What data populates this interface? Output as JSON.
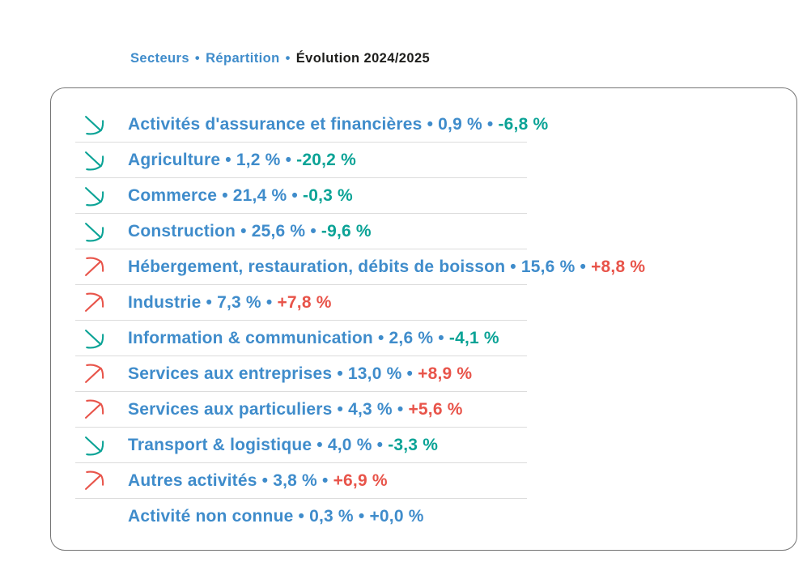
{
  "colors": {
    "blue": "#3f8ccb",
    "teal_negative": "#0ba396",
    "red_positive": "#e8544a",
    "dark": "#1d1d1b",
    "card_border": "#757575",
    "row_separator": "#dcdcdc"
  },
  "header": {
    "separator": "•",
    "items": [
      {
        "id": "secteurs",
        "label": "Secteurs",
        "style": "link"
      },
      {
        "id": "repartition",
        "label": "Répartition",
        "style": "link"
      },
      {
        "id": "evolution",
        "label": "Évolution 2024/2025",
        "style": "active"
      }
    ]
  },
  "list": {
    "separator": "•",
    "icons": {
      "up": "trend-up-arrow",
      "down": "trend-down-arrow",
      "flat": "none"
    },
    "rows": [
      {
        "sector": "Activités d'assurance et financières",
        "share": "0,9 %",
        "evolution": "-6,8 %",
        "trend": "down"
      },
      {
        "sector": "Agriculture",
        "share": "1,2 %",
        "evolution": "-20,2 %",
        "trend": "down"
      },
      {
        "sector": "Commerce",
        "share": "21,4 %",
        "evolution": "-0,3 %",
        "trend": "down"
      },
      {
        "sector": "Construction",
        "share": "25,6 %",
        "evolution": "-9,6 %",
        "trend": "down"
      },
      {
        "sector": "Hébergement, restauration, débits de boisson",
        "share": "15,6 %",
        "evolution": "+8,8 %",
        "trend": "up"
      },
      {
        "sector": "Industrie",
        "share": "7,3 %",
        "evolution": "+7,8 %",
        "trend": "up"
      },
      {
        "sector": "Information & communication",
        "share": "2,6 %",
        "evolution": "-4,1 %",
        "trend": "down"
      },
      {
        "sector": "Services aux entreprises",
        "share": "13,0 %",
        "evolution": "+8,9 %",
        "trend": "up"
      },
      {
        "sector": "Services aux particuliers",
        "share": "4,3 %",
        "evolution": "+5,6 %",
        "trend": "up"
      },
      {
        "sector": "Transport & logistique",
        "share": "4,0 %",
        "evolution": "-3,3 %",
        "trend": "down"
      },
      {
        "sector": "Autres activités",
        "share": "3,8 %",
        "evolution": "+6,9 %",
        "trend": "up"
      },
      {
        "sector": "Activité non connue",
        "share": "0,3 %",
        "evolution": "+0,0 %",
        "trend": "flat"
      }
    ]
  },
  "chart_data": {
    "type": "table",
    "title": "Secteurs • Répartition • Évolution 2024/2025",
    "columns": [
      "Secteur",
      "Répartition (%)",
      "Évolution 2024/2025 (%)"
    ],
    "rows": [
      [
        "Activités d'assurance et financières",
        0.9,
        -6.8
      ],
      [
        "Agriculture",
        1.2,
        -20.2
      ],
      [
        "Commerce",
        21.4,
        -0.3
      ],
      [
        "Construction",
        25.6,
        -9.6
      ],
      [
        "Hébergement, restauration, débits de boisson",
        15.6,
        8.8
      ],
      [
        "Industrie",
        7.3,
        7.8
      ],
      [
        "Information & communication",
        2.6,
        -4.1
      ],
      [
        "Services aux entreprises",
        13.0,
        8.9
      ],
      [
        "Services aux particuliers",
        4.3,
        5.6
      ],
      [
        "Transport & logistique",
        4.0,
        -3.3
      ],
      [
        "Autres activités",
        3.8,
        6.9
      ],
      [
        "Activité non connue",
        0.3,
        0.0
      ]
    ]
  }
}
